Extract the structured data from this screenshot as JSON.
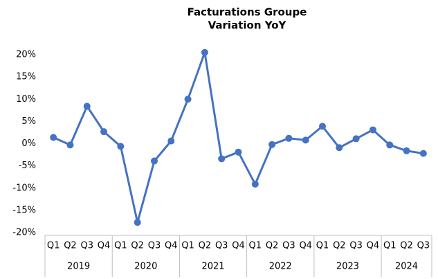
{
  "chart_data": {
    "type": "line",
    "title": [
      "Facturations Groupe",
      "Variation YoY"
    ],
    "groups": [
      {
        "label": "2019",
        "categories": [
          "Q1",
          "Q2",
          "Q3",
          "Q4"
        ]
      },
      {
        "label": "2020",
        "categories": [
          "Q1",
          "Q2",
          "Q3",
          "Q4"
        ]
      },
      {
        "label": "2021",
        "categories": [
          "Q1",
          "Q2",
          "Q3",
          "Q4"
        ]
      },
      {
        "label": "2022",
        "categories": [
          "Q1",
          "Q2",
          "Q3",
          "Q4"
        ]
      },
      {
        "label": "2023",
        "categories": [
          "Q1",
          "Q2",
          "Q3",
          "Q4"
        ]
      },
      {
        "label": "2024",
        "categories": [
          "Q1",
          "Q2",
          "Q3"
        ]
      }
    ],
    "values": [
      1.4,
      -0.3,
      8.4,
      2.7,
      -0.6,
      -17.7,
      -3.9,
      0.6,
      10.0,
      20.5,
      -3.4,
      -1.9,
      -9.1,
      -0.2,
      1.2,
      0.8,
      3.9,
      -0.9,
      1.1,
      3.1,
      -0.3,
      -1.6,
      -2.2
    ],
    "color": "#4472c4",
    "ylim": [
      -20,
      20
    ],
    "yticks": [
      {
        "value": -20,
        "label": "-20%"
      },
      {
        "value": -15,
        "label": "-15%"
      },
      {
        "value": -10,
        "label": "-10%"
      },
      {
        "value": -5,
        "label": "-5%"
      },
      {
        "value": 0,
        "label": "0%"
      },
      {
        "value": 5,
        "label": "5%"
      },
      {
        "value": 10,
        "label": "10%"
      },
      {
        "value": 15,
        "label": "15%"
      },
      {
        "value": 20,
        "label": "20%"
      }
    ],
    "grid": false
  }
}
